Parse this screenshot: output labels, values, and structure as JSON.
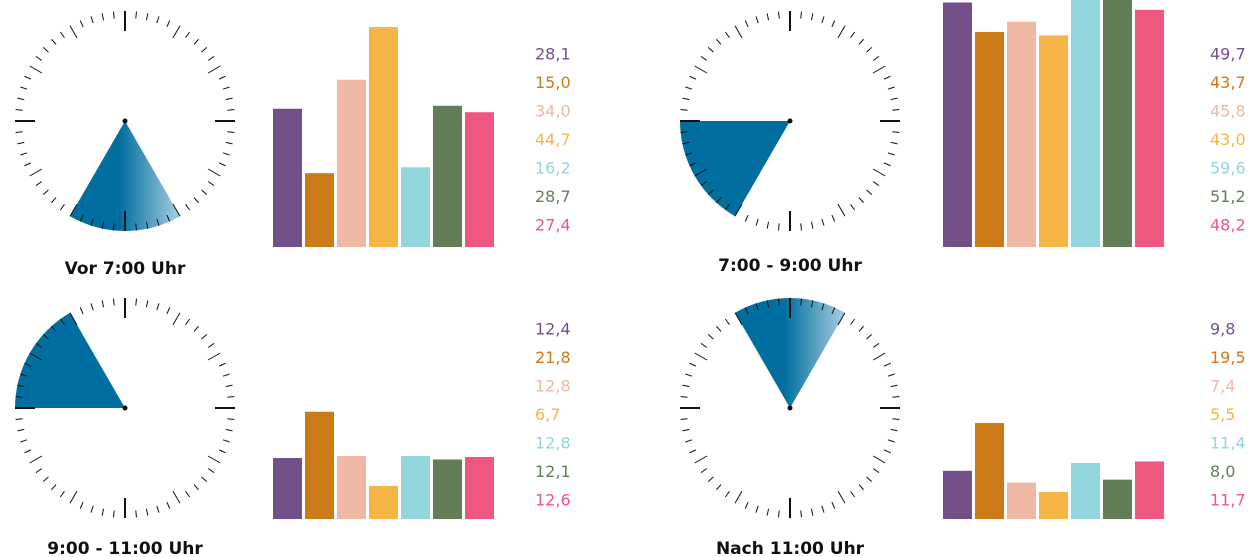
{
  "chart_data": [
    {
      "type": "bar",
      "title": "Vor 7:00 Uhr",
      "values": [
        28.1,
        15.0,
        34.0,
        44.7,
        16.2,
        28.7,
        27.4
      ],
      "value_labels": [
        "28,1",
        "15,0",
        "34,0",
        "44,7",
        "16,2",
        "28,7",
        "27,4"
      ],
      "colors": [
        "#74508a",
        "#cc7a17",
        "#efb8a5",
        "#f7b548",
        "#93d5dc",
        "#637e56",
        "#f0577e"
      ],
      "ylim": [
        0,
        50
      ]
    },
    {
      "type": "bar",
      "title": "7:00 - 9:00 Uhr",
      "values": [
        49.7,
        43.7,
        45.8,
        43.0,
        59.6,
        51.2,
        48.2
      ],
      "value_labels": [
        "49,7",
        "43,7",
        "45,8",
        "43,0",
        "59,6",
        "51,2",
        "48,2"
      ],
      "colors": [
        "#74508a",
        "#cc7a17",
        "#efb8a5",
        "#f7b548",
        "#93d5dc",
        "#637e56",
        "#f0577e"
      ],
      "ylim": [
        0,
        50
      ]
    },
    {
      "type": "bar",
      "title": "9:00 - 11:00 Uhr",
      "values": [
        12.4,
        21.8,
        12.8,
        6.7,
        12.8,
        12.1,
        12.6
      ],
      "value_labels": [
        "12,4",
        "21,8",
        "12,8",
        "6,7",
        "12,8",
        "12,1",
        "12,6"
      ],
      "colors": [
        "#74508a",
        "#cc7a17",
        "#efb8a5",
        "#f7b548",
        "#93d5dc",
        "#637e56",
        "#f0577e"
      ],
      "ylim": [
        0,
        50
      ]
    },
    {
      "type": "bar",
      "title": "Nach 11:00 Uhr",
      "values": [
        9.8,
        19.5,
        7.4,
        5.5,
        11.4,
        8.0,
        11.7
      ],
      "value_labels": [
        "9,8",
        "19,5",
        "7,4",
        "5,5",
        "11,4",
        "8,0",
        "11,7"
      ],
      "colors": [
        "#74508a",
        "#cc7a17",
        "#efb8a5",
        "#f7b548",
        "#93d5dc",
        "#637e56",
        "#f0577e"
      ],
      "ylim": [
        0,
        50
      ]
    }
  ]
}
